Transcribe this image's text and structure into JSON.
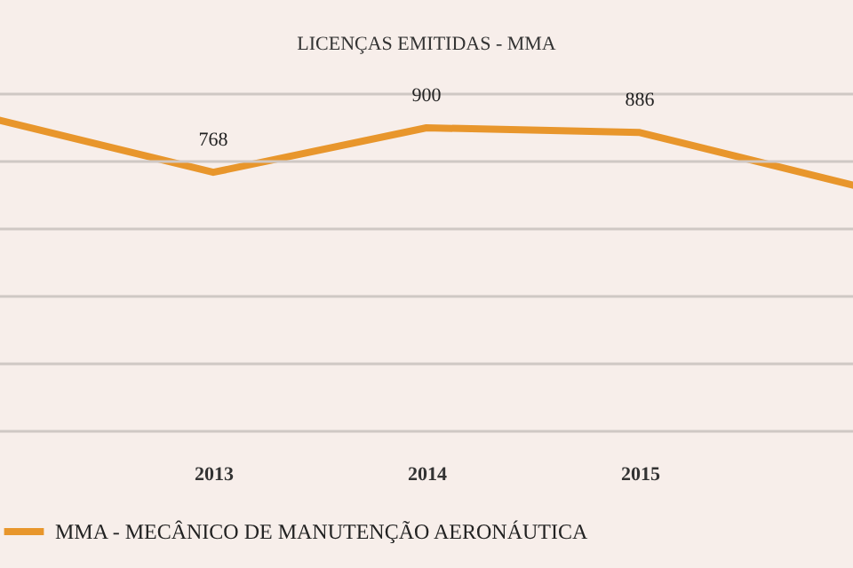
{
  "chart_data": {
    "type": "line",
    "title": "LICENÇAS EMITIDAS - MMA",
    "categories": [
      null,
      "2013",
      "2014",
      "2015",
      null
    ],
    "series": [
      {
        "name": "MMA - MECÂNICO DE MANUTENÇÃO AERONÁUTICA",
        "color": "#e8962c",
        "values": [
          922,
          768,
          900,
          886,
          730
        ],
        "value_labels": [
          null,
          "768",
          "900",
          "886",
          null
        ]
      }
    ],
    "ylim": [
      0,
      1000
    ],
    "yticks": [
      {
        "value": 0,
        "label": null
      },
      {
        "value": 200,
        "label": null
      },
      {
        "value": 400,
        "label": null
      },
      {
        "value": 600,
        "label": null
      },
      {
        "value": 800,
        "label": null
      },
      {
        "value": 1000,
        "label": null
      }
    ],
    "tick_labels": "x",
    "grid": "y",
    "legend": "bottom",
    "marker": "none",
    "line_style": "solid"
  }
}
